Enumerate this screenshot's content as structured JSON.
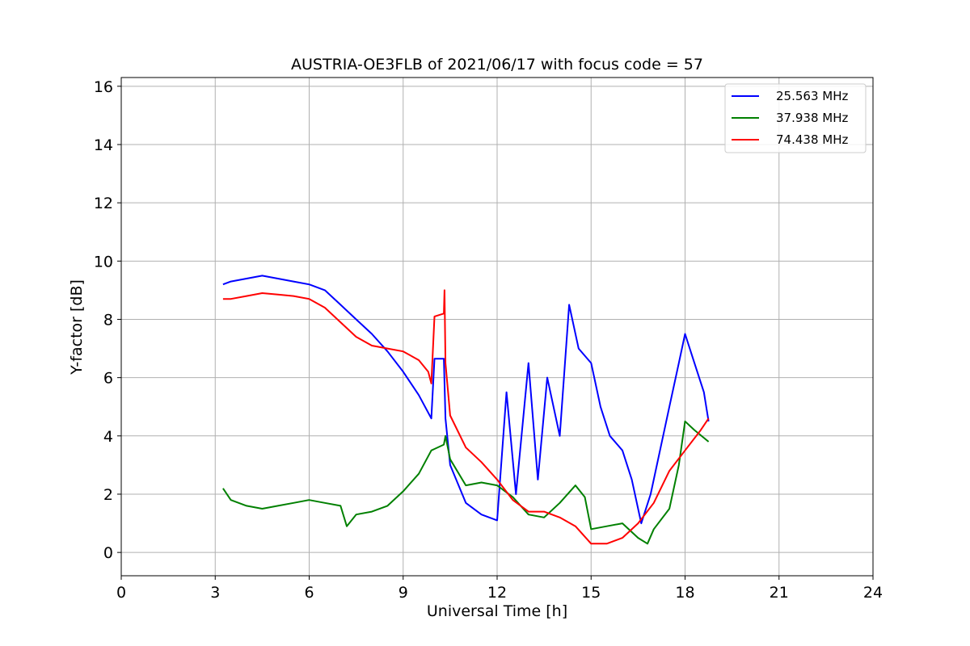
{
  "chart_data": {
    "type": "line",
    "title": "AUSTRIA-OE3FLB of 2021/06/17 with focus code = 57",
    "xlabel": "Universal Time [h]",
    "ylabel": "Y-factor [dB]",
    "xlim": [
      0,
      24
    ],
    "ylim": [
      -0.8,
      16.3
    ],
    "xticks": [
      0,
      3,
      6,
      9,
      12,
      15,
      18,
      21,
      24
    ],
    "yticks": [
      0,
      2,
      4,
      6,
      8,
      10,
      12,
      14,
      16
    ],
    "grid": true,
    "legend_position": "top-right",
    "series": [
      {
        "name": "25.563 MHz",
        "color": "#0000ff",
        "x": [
          3.25,
          3.5,
          4.0,
          4.5,
          5.0,
          5.5,
          6.0,
          6.5,
          7.0,
          7.5,
          8.0,
          8.5,
          9.0,
          9.5,
          9.9,
          10.0,
          10.3,
          10.35,
          10.5,
          11.0,
          11.5,
          12.0,
          12.3,
          12.6,
          13.0,
          13.3,
          13.6,
          14.0,
          14.3,
          14.6,
          15.0,
          15.3,
          15.6,
          16.0,
          16.3,
          16.6,
          16.9,
          17.2,
          17.5,
          17.8,
          18.0,
          18.3,
          18.6,
          18.75
        ],
        "y": [
          9.2,
          9.3,
          9.4,
          9.5,
          9.4,
          9.3,
          9.2,
          9.0,
          8.5,
          8.0,
          7.5,
          6.9,
          6.2,
          5.4,
          4.6,
          6.65,
          6.65,
          4.6,
          3.0,
          1.7,
          1.3,
          1.1,
          5.5,
          2.0,
          6.5,
          2.5,
          6.0,
          4.0,
          8.5,
          7.0,
          6.5,
          5.0,
          4.0,
          3.5,
          2.5,
          1.0,
          2.0,
          3.5,
          5.0,
          6.5,
          7.5,
          6.5,
          5.5,
          4.5
        ]
      },
      {
        "name": "37.938 MHz",
        "color": "#008000",
        "x": [
          3.25,
          3.5,
          4.0,
          4.5,
          5.0,
          5.5,
          6.0,
          6.5,
          7.0,
          7.2,
          7.5,
          8.0,
          8.5,
          9.0,
          9.5,
          9.9,
          10.0,
          10.3,
          10.35,
          10.5,
          11.0,
          11.5,
          12.0,
          12.5,
          13.0,
          13.5,
          14.0,
          14.5,
          14.8,
          15.0,
          15.5,
          16.0,
          16.5,
          16.8,
          17.0,
          17.5,
          17.8,
          18.0,
          18.3,
          18.75
        ],
        "y": [
          2.2,
          1.8,
          1.6,
          1.5,
          1.6,
          1.7,
          1.8,
          1.7,
          1.6,
          0.9,
          1.3,
          1.4,
          1.6,
          2.1,
          2.7,
          3.5,
          3.55,
          3.7,
          4.0,
          3.2,
          2.3,
          2.4,
          2.3,
          1.9,
          1.3,
          1.2,
          1.7,
          2.3,
          1.9,
          0.8,
          0.9,
          1.0,
          0.5,
          0.3,
          0.8,
          1.5,
          3.0,
          4.5,
          4.2,
          3.8
        ]
      },
      {
        "name": "74.438 MHz",
        "color": "#ff0000",
        "x": [
          3.25,
          3.5,
          4.0,
          4.5,
          5.0,
          5.5,
          6.0,
          6.5,
          7.0,
          7.5,
          8.0,
          8.5,
          9.0,
          9.5,
          9.8,
          9.9,
          10.0,
          10.3,
          10.32,
          10.35,
          10.5,
          11.0,
          11.5,
          12.0,
          12.5,
          13.0,
          13.5,
          14.0,
          14.5,
          15.0,
          15.5,
          16.0,
          16.5,
          17.0,
          17.5,
          18.0,
          18.5,
          18.75
        ],
        "y": [
          8.7,
          8.7,
          8.8,
          8.9,
          8.85,
          8.8,
          8.7,
          8.4,
          7.9,
          7.4,
          7.1,
          7.0,
          6.9,
          6.6,
          6.2,
          5.8,
          8.1,
          8.2,
          9.0,
          6.5,
          4.7,
          3.6,
          3.1,
          2.5,
          1.8,
          1.4,
          1.4,
          1.2,
          0.9,
          0.3,
          0.3,
          0.5,
          1.0,
          1.7,
          2.8,
          3.5,
          4.2,
          4.6
        ]
      }
    ]
  }
}
